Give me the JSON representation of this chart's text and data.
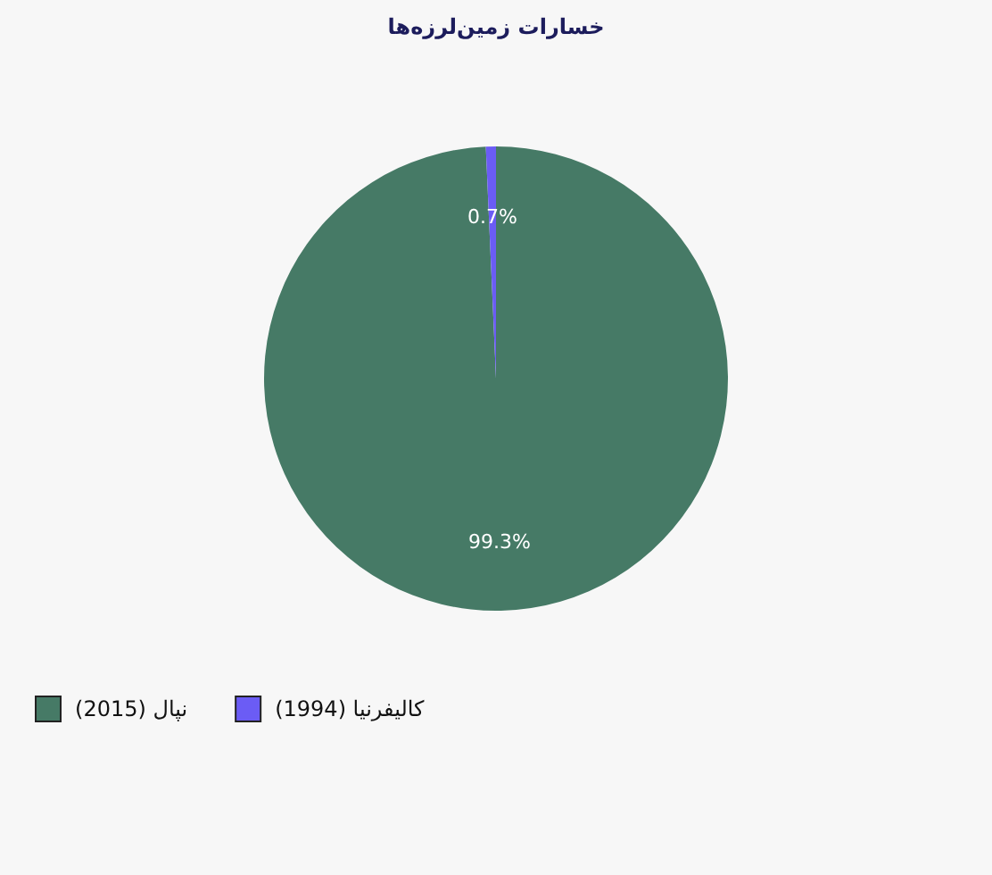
{
  "chart_data": {
    "type": "pie",
    "title": "خسارات زمین‌لرزه‌ها",
    "categories": [
      "نپال (2015)",
      "کالیفرنیا (1994)"
    ],
    "values": [
      99.3,
      0.7
    ],
    "colors": [
      "#467a66",
      "#6b5cf5"
    ],
    "value_labels": [
      "99.3%",
      "0.7%"
    ],
    "legend": "bottom left"
  }
}
